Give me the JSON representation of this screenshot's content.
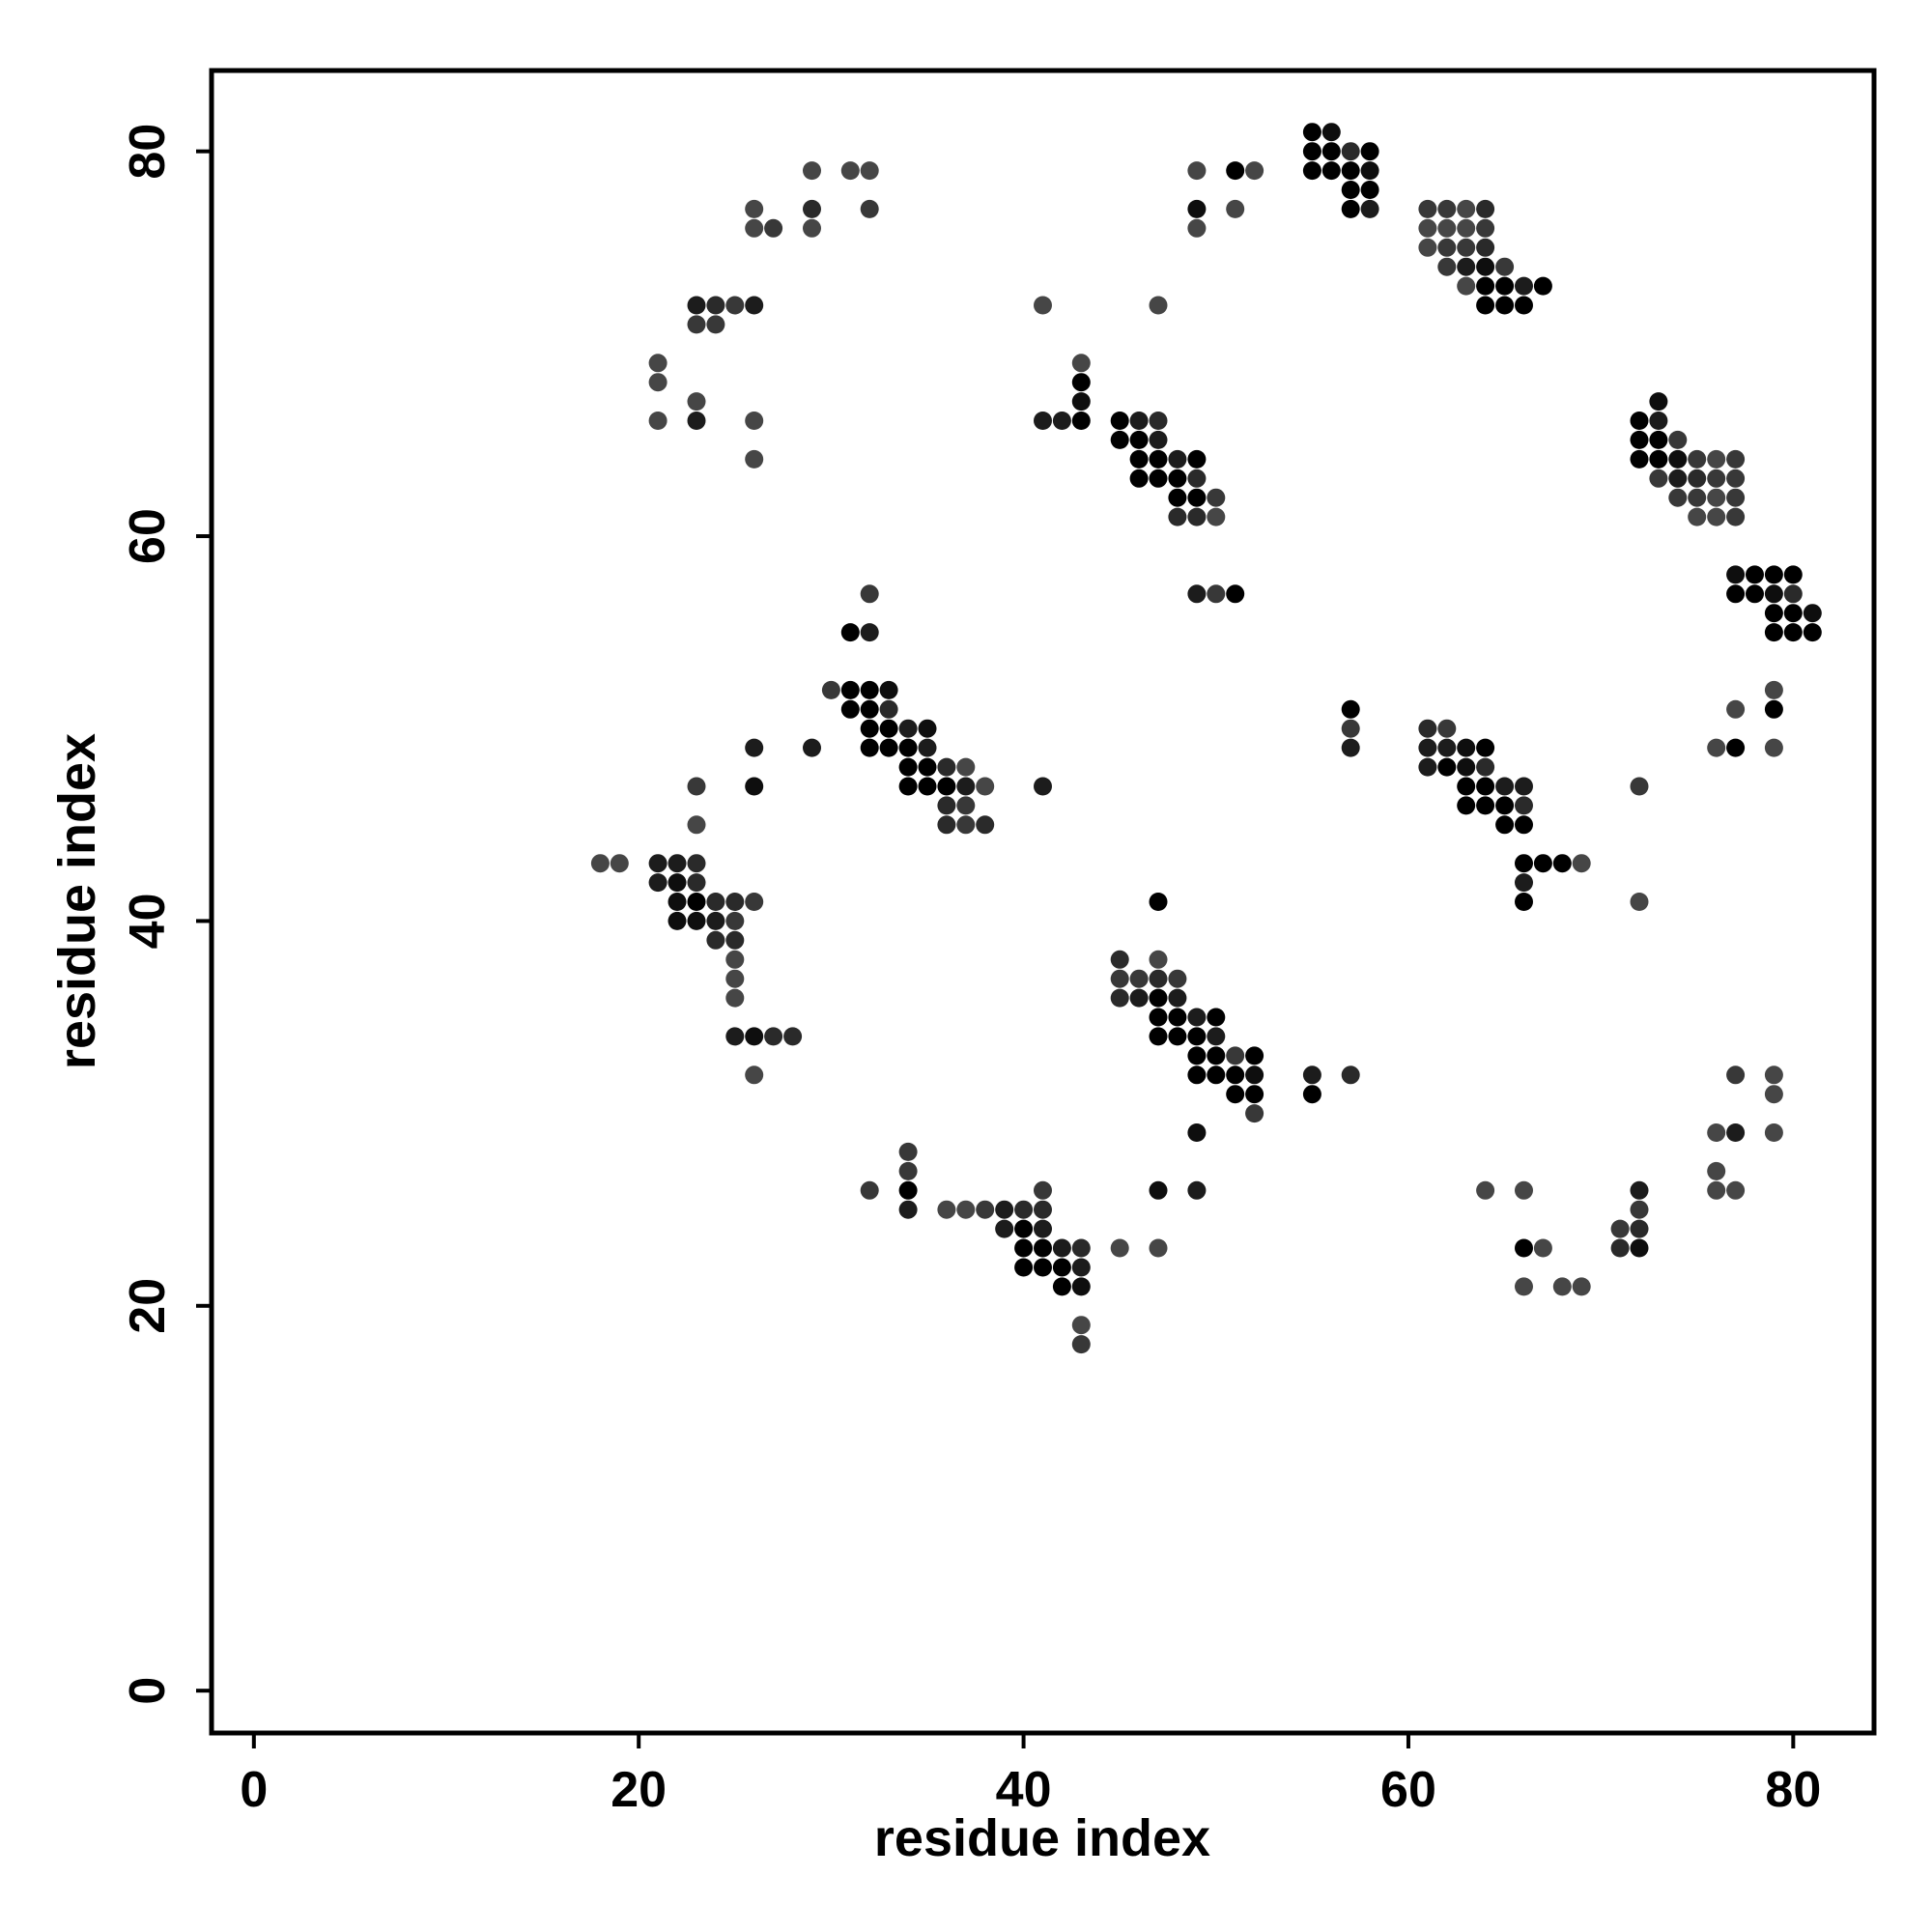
{
  "chart_data": {
    "type": "scatter",
    "title": "",
    "xlabel": "residue index",
    "ylabel": "residue index",
    "xlim": [
      -2.2,
      84.2
    ],
    "ylim": [
      -2.2,
      84.2
    ],
    "xticks": [
      0,
      20,
      40,
      60,
      80
    ],
    "yticks": [
      0,
      20,
      40,
      60,
      80
    ],
    "grid": false,
    "legend": "none",
    "point_color_scale": "grayscale, darker = higher value (0 light gray to 1 black)",
    "points": [
      [
        18,
        43,
        0.5
      ],
      [
        19,
        43,
        0.5
      ],
      [
        21,
        43,
        0.8
      ],
      [
        22,
        43,
        0.8
      ],
      [
        23,
        43,
        0.7
      ],
      [
        21,
        42,
        0.8
      ],
      [
        22,
        42,
        0.9
      ],
      [
        23,
        42,
        0.7
      ],
      [
        22,
        41,
        0.9
      ],
      [
        23,
        41,
        1.0
      ],
      [
        24,
        41,
        0.7
      ],
      [
        25,
        41,
        0.7
      ],
      [
        26,
        41,
        0.6
      ],
      [
        22,
        40,
        0.9
      ],
      [
        23,
        40,
        0.9
      ],
      [
        24,
        40,
        0.8
      ],
      [
        25,
        40,
        0.6
      ],
      [
        24,
        39,
        0.7
      ],
      [
        25,
        39,
        0.7
      ],
      [
        25,
        38,
        0.5
      ],
      [
        25,
        37,
        0.5
      ],
      [
        25,
        36,
        0.5
      ],
      [
        25,
        34,
        0.8
      ],
      [
        26,
        34,
        0.9
      ],
      [
        27,
        34,
        0.7
      ],
      [
        28,
        34,
        0.7
      ],
      [
        26,
        32,
        0.5
      ],
      [
        23,
        47,
        0.6
      ],
      [
        23,
        45,
        0.5
      ],
      [
        26,
        49,
        0.8
      ],
      [
        26,
        47,
        0.9
      ],
      [
        29,
        49,
        0.8
      ],
      [
        30,
        52,
        0.6
      ],
      [
        31,
        52,
        1.0
      ],
      [
        32,
        52,
        1.0
      ],
      [
        33,
        52,
        0.9
      ],
      [
        31,
        51,
        1.0
      ],
      [
        32,
        51,
        1.0
      ],
      [
        33,
        51,
        0.7
      ],
      [
        32,
        50,
        1.0
      ],
      [
        33,
        50,
        1.0
      ],
      [
        34,
        50,
        0.8
      ],
      [
        35,
        50,
        0.9
      ],
      [
        32,
        49,
        1.0
      ],
      [
        33,
        49,
        1.0
      ],
      [
        34,
        49,
        1.0
      ],
      [
        35,
        49,
        0.8
      ],
      [
        34,
        48,
        1.0
      ],
      [
        35,
        48,
        1.0
      ],
      [
        36,
        48,
        0.7
      ],
      [
        37,
        48,
        0.5
      ],
      [
        34,
        47,
        1.0
      ],
      [
        35,
        47,
        1.0
      ],
      [
        36,
        47,
        1.0
      ],
      [
        37,
        47,
        0.8
      ],
      [
        38,
        47,
        0.5
      ],
      [
        36,
        46,
        0.7
      ],
      [
        37,
        46,
        0.6
      ],
      [
        36,
        45,
        0.7
      ],
      [
        37,
        45,
        0.6
      ],
      [
        38,
        45,
        0.7
      ],
      [
        31,
        55,
        1.0
      ],
      [
        32,
        55,
        0.8
      ],
      [
        32,
        57,
        0.6
      ],
      [
        41,
        47,
        0.8
      ],
      [
        21,
        69,
        0.5
      ],
      [
        21,
        68,
        0.5
      ],
      [
        21,
        66,
        0.5
      ],
      [
        23,
        67,
        0.5
      ],
      [
        23,
        66,
        0.8
      ],
      [
        23,
        72,
        0.8
      ],
      [
        24,
        72,
        0.7
      ],
      [
        25,
        72,
        0.6
      ],
      [
        26,
        72,
        0.8
      ],
      [
        23,
        71,
        0.6
      ],
      [
        24,
        71,
        0.6
      ],
      [
        26,
        66,
        0.5
      ],
      [
        26,
        64,
        0.5
      ],
      [
        26,
        77,
        0.5
      ],
      [
        26,
        76,
        0.5
      ],
      [
        27,
        76,
        0.6
      ],
      [
        29,
        79,
        0.5
      ],
      [
        29,
        77,
        0.7
      ],
      [
        29,
        76,
        0.5
      ],
      [
        31,
        79,
        0.5
      ],
      [
        32,
        79,
        0.5
      ],
      [
        32,
        77,
        0.6
      ],
      [
        41,
        72,
        0.5
      ],
      [
        47,
        72,
        0.5
      ],
      [
        43,
        69,
        0.5
      ],
      [
        43,
        68,
        1.0
      ],
      [
        43,
        67,
        0.9
      ],
      [
        41,
        66,
        0.8
      ],
      [
        42,
        66,
        0.8
      ],
      [
        43,
        66,
        1.0
      ],
      [
        45,
        66,
        1.0
      ],
      [
        46,
        66,
        0.8
      ],
      [
        47,
        66,
        0.7
      ],
      [
        45,
        65,
        1.0
      ],
      [
        46,
        65,
        1.0
      ],
      [
        47,
        65,
        0.8
      ],
      [
        46,
        64,
        1.0
      ],
      [
        47,
        64,
        1.0
      ],
      [
        48,
        64,
        0.8
      ],
      [
        49,
        64,
        1.0
      ],
      [
        46,
        63,
        1.0
      ],
      [
        47,
        63,
        1.0
      ],
      [
        48,
        63,
        1.0
      ],
      [
        49,
        63,
        0.7
      ],
      [
        48,
        62,
        1.0
      ],
      [
        49,
        62,
        1.0
      ],
      [
        50,
        62,
        0.6
      ],
      [
        48,
        61,
        0.7
      ],
      [
        49,
        61,
        0.7
      ],
      [
        50,
        61,
        0.5
      ],
      [
        49,
        57,
        0.8
      ],
      [
        50,
        57,
        0.6
      ],
      [
        51,
        57,
        1.0
      ],
      [
        49,
        79,
        0.5
      ],
      [
        51,
        79,
        1.0
      ],
      [
        52,
        79,
        0.5
      ],
      [
        49,
        77,
        0.9
      ],
      [
        51,
        77,
        0.5
      ],
      [
        49,
        76,
        0.5
      ],
      [
        55,
        81,
        1.0
      ],
      [
        56,
        81,
        0.9
      ],
      [
        55,
        80,
        1.0
      ],
      [
        56,
        80,
        1.0
      ],
      [
        57,
        80,
        0.7
      ],
      [
        58,
        80,
        1.0
      ],
      [
        55,
        79,
        1.0
      ],
      [
        56,
        79,
        1.0
      ],
      [
        57,
        79,
        1.0
      ],
      [
        58,
        79,
        0.9
      ],
      [
        57,
        78,
        1.0
      ],
      [
        58,
        78,
        1.0
      ],
      [
        57,
        77,
        1.0
      ],
      [
        58,
        77,
        0.8
      ],
      [
        61,
        77,
        0.6
      ],
      [
        62,
        77,
        0.6
      ],
      [
        63,
        77,
        0.5
      ],
      [
        64,
        77,
        0.7
      ],
      [
        61,
        76,
        0.5
      ],
      [
        62,
        76,
        0.5
      ],
      [
        63,
        76,
        0.5
      ],
      [
        64,
        76,
        0.6
      ],
      [
        61,
        75,
        0.5
      ],
      [
        62,
        75,
        0.6
      ],
      [
        63,
        75,
        0.6
      ],
      [
        64,
        75,
        0.7
      ],
      [
        62,
        74,
        0.6
      ],
      [
        63,
        74,
        0.8
      ],
      [
        64,
        74,
        0.9
      ],
      [
        65,
        74,
        0.6
      ],
      [
        63,
        73,
        0.5
      ],
      [
        64,
        73,
        1.0
      ],
      [
        65,
        73,
        1.0
      ],
      [
        66,
        73,
        0.8
      ],
      [
        67,
        73,
        1.0
      ],
      [
        64,
        72,
        1.0
      ],
      [
        65,
        72,
        1.0
      ],
      [
        66,
        72,
        1.0
      ],
      [
        72,
        66,
        1.0
      ],
      [
        73,
        67,
        0.9
      ],
      [
        73,
        66,
        0.8
      ],
      [
        72,
        65,
        1.0
      ],
      [
        73,
        65,
        1.0
      ],
      [
        74,
        65,
        0.6
      ],
      [
        72,
        64,
        1.0
      ],
      [
        73,
        64,
        1.0
      ],
      [
        74,
        64,
        0.9
      ],
      [
        75,
        64,
        0.6
      ],
      [
        76,
        64,
        0.5
      ],
      [
        77,
        64,
        0.6
      ],
      [
        73,
        63,
        0.6
      ],
      [
        74,
        63,
        0.8
      ],
      [
        75,
        63,
        0.7
      ],
      [
        76,
        63,
        0.6
      ],
      [
        77,
        63,
        0.6
      ],
      [
        74,
        62,
        0.6
      ],
      [
        75,
        62,
        0.6
      ],
      [
        76,
        62,
        0.5
      ],
      [
        77,
        62,
        0.6
      ],
      [
        75,
        61,
        0.5
      ],
      [
        76,
        61,
        0.5
      ],
      [
        77,
        61,
        0.6
      ],
      [
        77,
        58,
        0.9
      ],
      [
        78,
        58,
        1.0
      ],
      [
        79,
        58,
        1.0
      ],
      [
        80,
        58,
        1.0
      ],
      [
        77,
        57,
        1.0
      ],
      [
        78,
        57,
        1.0
      ],
      [
        79,
        57,
        0.9
      ],
      [
        80,
        57,
        0.7
      ],
      [
        79,
        56,
        1.0
      ],
      [
        80,
        56,
        1.0
      ],
      [
        81,
        56,
        0.9
      ],
      [
        79,
        55,
        1.0
      ],
      [
        80,
        55,
        1.0
      ],
      [
        81,
        55,
        1.0
      ],
      [
        79,
        52,
        0.5
      ],
      [
        77,
        51,
        0.5
      ],
      [
        79,
        51,
        1.0
      ],
      [
        76,
        49,
        0.5
      ],
      [
        77,
        49,
        1.0
      ],
      [
        79,
        49,
        0.5
      ],
      [
        57,
        51,
        1.0
      ],
      [
        57,
        50,
        0.6
      ],
      [
        57,
        49,
        0.8
      ],
      [
        61,
        50,
        0.7
      ],
      [
        62,
        50,
        0.6
      ],
      [
        61,
        49,
        0.8
      ],
      [
        62,
        49,
        0.8
      ],
      [
        63,
        49,
        0.9
      ],
      [
        64,
        49,
        1.0
      ],
      [
        61,
        48,
        0.8
      ],
      [
        62,
        48,
        1.0
      ],
      [
        63,
        48,
        0.9
      ],
      [
        64,
        48,
        0.7
      ],
      [
        63,
        47,
        1.0
      ],
      [
        64,
        47,
        1.0
      ],
      [
        65,
        47,
        0.8
      ],
      [
        66,
        47,
        0.8
      ],
      [
        63,
        46,
        1.0
      ],
      [
        64,
        46,
        1.0
      ],
      [
        65,
        46,
        1.0
      ],
      [
        66,
        46,
        0.7
      ],
      [
        65,
        45,
        1.0
      ],
      [
        66,
        45,
        1.0
      ],
      [
        66,
        43,
        1.0
      ],
      [
        67,
        43,
        1.0
      ],
      [
        68,
        43,
        1.0
      ],
      [
        69,
        43,
        0.5
      ],
      [
        66,
        42,
        0.8
      ],
      [
        66,
        41,
        1.0
      ],
      [
        72,
        47,
        0.6
      ],
      [
        72,
        41,
        0.5
      ],
      [
        45,
        38,
        0.7
      ],
      [
        47,
        38,
        0.5
      ],
      [
        45,
        37,
        0.6
      ],
      [
        46,
        37,
        0.6
      ],
      [
        47,
        37,
        0.7
      ],
      [
        48,
        37,
        0.6
      ],
      [
        45,
        36,
        0.7
      ],
      [
        46,
        36,
        0.8
      ],
      [
        47,
        36,
        1.0
      ],
      [
        48,
        36,
        0.8
      ],
      [
        47,
        35,
        1.0
      ],
      [
        48,
        35,
        1.0
      ],
      [
        49,
        35,
        0.8
      ],
      [
        50,
        35,
        1.0
      ],
      [
        47,
        34,
        1.0
      ],
      [
        48,
        34,
        1.0
      ],
      [
        49,
        34,
        1.0
      ],
      [
        50,
        34,
        0.8
      ],
      [
        49,
        33,
        1.0
      ],
      [
        50,
        33,
        1.0
      ],
      [
        51,
        33,
        0.6
      ],
      [
        52,
        33,
        1.0
      ],
      [
        49,
        32,
        1.0
      ],
      [
        50,
        32,
        1.0
      ],
      [
        51,
        32,
        1.0
      ],
      [
        52,
        32,
        0.9
      ],
      [
        51,
        31,
        1.0
      ],
      [
        52,
        31,
        1.0
      ],
      [
        52,
        30,
        0.6
      ],
      [
        55,
        32,
        0.8
      ],
      [
        57,
        32,
        0.7
      ],
      [
        55,
        31,
        1.0
      ],
      [
        47,
        41,
        1.0
      ],
      [
        49,
        29,
        0.9
      ],
      [
        47,
        26,
        0.9
      ],
      [
        49,
        26,
        0.8
      ],
      [
        45,
        23,
        0.5
      ],
      [
        47,
        23,
        0.5
      ],
      [
        32,
        26,
        0.6
      ],
      [
        34,
        28,
        0.6
      ],
      [
        34,
        27,
        0.6
      ],
      [
        34,
        26,
        1.0
      ],
      [
        34,
        25,
        0.8
      ],
      [
        36,
        25,
        0.5
      ],
      [
        37,
        25,
        0.5
      ],
      [
        38,
        25,
        0.6
      ],
      [
        39,
        25,
        0.8
      ],
      [
        40,
        25,
        0.7
      ],
      [
        41,
        25,
        0.7
      ],
      [
        39,
        24,
        0.8
      ],
      [
        40,
        24,
        1.0
      ],
      [
        41,
        24,
        0.8
      ],
      [
        40,
        23,
        1.0
      ],
      [
        41,
        23,
        1.0
      ],
      [
        42,
        23,
        0.8
      ],
      [
        43,
        23,
        0.7
      ],
      [
        40,
        22,
        1.0
      ],
      [
        41,
        22,
        1.0
      ],
      [
        42,
        22,
        1.0
      ],
      [
        43,
        22,
        0.8
      ],
      [
        42,
        21,
        1.0
      ],
      [
        43,
        21,
        0.9
      ],
      [
        41,
        26,
        0.6
      ],
      [
        43,
        19,
        0.5
      ],
      [
        43,
        18,
        0.6
      ],
      [
        64,
        26,
        0.5
      ],
      [
        66,
        26,
        0.5
      ],
      [
        66,
        23,
        1.0
      ],
      [
        67,
        23,
        0.5
      ],
      [
        66,
        21,
        0.5
      ],
      [
        68,
        21,
        0.5
      ],
      [
        69,
        21,
        0.5
      ],
      [
        72,
        26,
        0.8
      ],
      [
        72,
        25,
        0.6
      ],
      [
        71,
        24,
        0.6
      ],
      [
        72,
        24,
        0.7
      ],
      [
        71,
        23,
        0.7
      ],
      [
        72,
        23,
        0.9
      ],
      [
        76,
        29,
        0.5
      ],
      [
        77,
        29,
        0.8
      ],
      [
        76,
        27,
        0.5
      ],
      [
        76,
        26,
        0.5
      ],
      [
        77,
        26,
        0.5
      ],
      [
        77,
        32,
        0.6
      ],
      [
        79,
        32,
        0.5
      ],
      [
        79,
        31,
        0.5
      ],
      [
        79,
        29,
        0.5
      ]
    ]
  }
}
